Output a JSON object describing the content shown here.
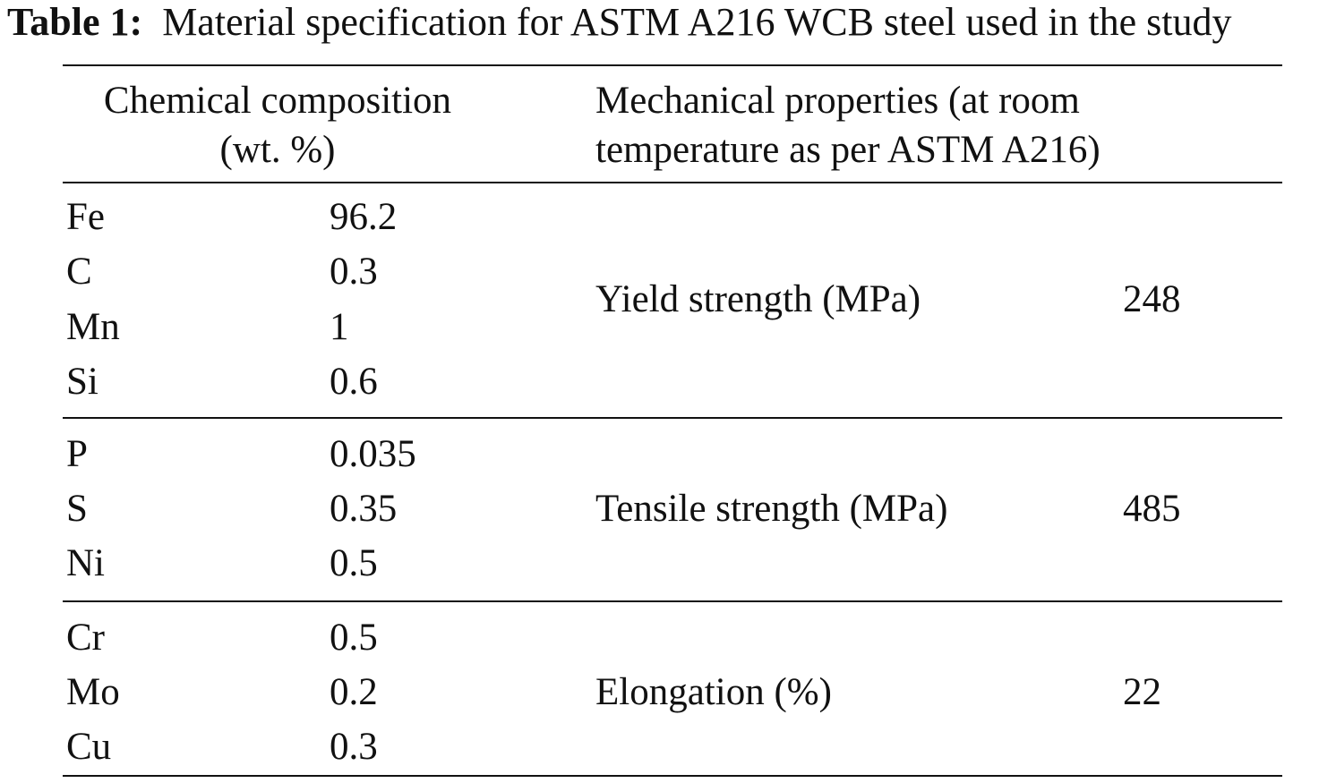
{
  "caption": {
    "label": "Table 1:",
    "text": "Material specification for ASTM A216 WCB steel used in the study"
  },
  "header": {
    "chem_line1": "Chemical composition",
    "chem_line2": "(wt. %)",
    "mech_line1": "Mechanical properties (at room",
    "mech_line2": "temperature as per ASTM A216)"
  },
  "groups": [
    {
      "elements": [
        {
          "symbol": "Fe",
          "value": "96.2"
        },
        {
          "symbol": "C",
          "value": "0.3"
        },
        {
          "symbol": "Mn",
          "value": "1"
        },
        {
          "symbol": "Si",
          "value": "0.6"
        }
      ],
      "property": "Yield strength (MPa)",
      "property_value": "248"
    },
    {
      "elements": [
        {
          "symbol": "P",
          "value": "0.035"
        },
        {
          "symbol": "S",
          "value": "0.35"
        },
        {
          "symbol": "Ni",
          "value": "0.5"
        }
      ],
      "property": "Tensile strength (MPa)",
      "property_value": "485"
    },
    {
      "elements": [
        {
          "symbol": "Cr",
          "value": "0.5"
        },
        {
          "symbol": "Mo",
          "value": "0.2"
        },
        {
          "symbol": "Cu",
          "value": "0.3"
        }
      ],
      "property": "Elongation (%)",
      "property_value": "22"
    }
  ]
}
